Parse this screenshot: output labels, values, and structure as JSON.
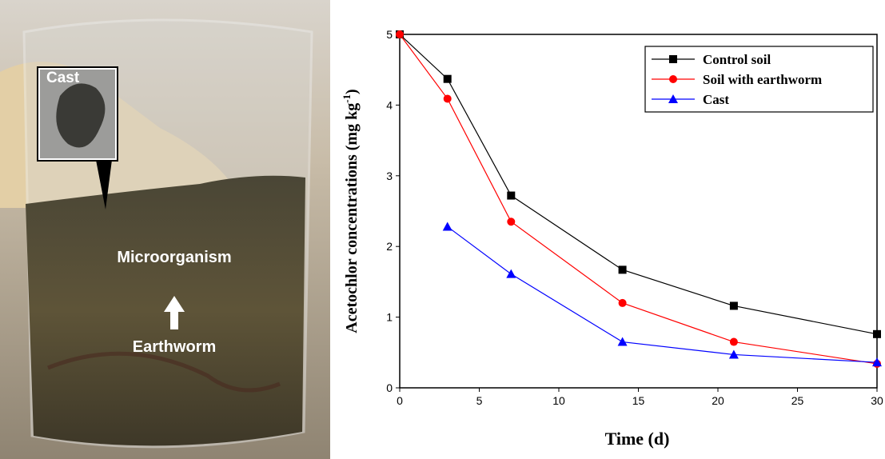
{
  "photo": {
    "labels": [
      "Cast",
      "Microorganism",
      "Earthworm"
    ]
  },
  "chart_data": {
    "type": "line",
    "xlabel": "Time (d)",
    "ylabel": {
      "text": "Acetochlor concentrations (mg kg",
      "sup": "-1",
      "end": ")"
    },
    "x": [
      0,
      3,
      7,
      14,
      21,
      30
    ],
    "series": [
      {
        "name": "Control soil",
        "color": "#000000",
        "marker": "square",
        "values": [
          5,
          4.37,
          2.72,
          1.67,
          1.16,
          0.76
        ]
      },
      {
        "name": "Soil with earthworm",
        "color": "#ff0000",
        "marker": "circle",
        "values": [
          5,
          4.09,
          2.35,
          1.2,
          0.65,
          0.34
        ]
      },
      {
        "name": "Cast",
        "color": "#0000ff",
        "marker": "triangle",
        "values": [
          null,
          2.28,
          1.61,
          0.65,
          0.47,
          0.36
        ]
      }
    ],
    "xlim": [
      0,
      30
    ],
    "xticks": [
      0,
      5,
      10,
      15,
      20,
      25,
      30
    ],
    "ylim": [
      0,
      5
    ],
    "yticks": [
      0,
      1,
      2,
      3,
      4,
      5
    ],
    "legend": "upper right"
  }
}
